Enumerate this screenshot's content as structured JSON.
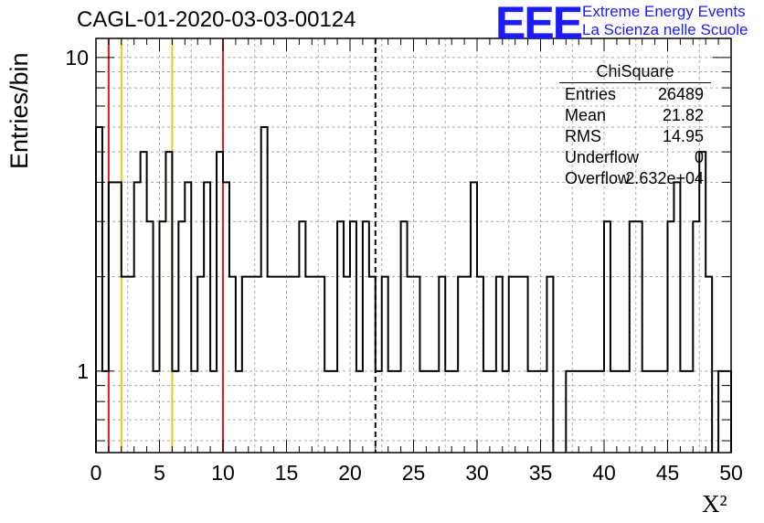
{
  "header": {
    "title": "CAGL-01-2020-03-03-00124",
    "logo_text": "EEE",
    "logo_line1": "Extreme Energy Events",
    "logo_line2": "La Scienza nelle Scuole",
    "logo_color": "#1a1aff"
  },
  "stats_box": {
    "title": "ChiSquare",
    "rows": [
      {
        "label": "Entries",
        "value": "26489"
      },
      {
        "label": "Mean",
        "value": "21.82"
      },
      {
        "label": "RMS",
        "value": "14.95"
      },
      {
        "label": "Underflow",
        "value": "0"
      },
      {
        "label": "Overflow",
        "value": "2.632e+04"
      }
    ]
  },
  "chart_data": {
    "type": "histogram",
    "xlabel": "X²",
    "ylabel": "Entries/bin",
    "xlim": [
      0,
      50
    ],
    "ylim": [
      0.55,
      11.5
    ],
    "y_scale": "log",
    "grid": true,
    "bin_width": 0.5,
    "x_ticks": [
      0,
      5,
      10,
      15,
      20,
      25,
      30,
      35,
      40,
      45,
      50
    ],
    "y_ticks": [
      1,
      10
    ],
    "values": [
      6,
      1,
      4,
      4,
      2,
      2,
      4,
      5,
      3,
      1,
      3,
      5,
      1,
      3,
      4,
      1,
      2,
      4,
      1,
      5,
      4,
      2,
      1,
      2,
      2,
      2,
      6,
      2,
      2,
      2,
      2,
      2,
      3,
      2,
      2,
      2,
      1,
      1,
      3,
      2,
      3,
      1,
      3,
      2,
      1,
      2,
      1,
      1,
      3,
      2,
      2,
      1,
      1,
      1,
      2,
      1,
      1,
      2,
      2,
      4,
      2,
      1,
      1,
      2,
      1,
      2,
      2,
      2,
      1,
      1,
      1,
      2,
      0,
      0,
      1,
      1,
      1,
      1,
      1,
      1,
      3,
      1,
      1,
      1,
      3,
      3,
      1,
      1,
      1,
      1,
      3,
      4,
      1,
      1,
      3,
      5,
      2,
      0,
      1,
      1
    ],
    "lines": [
      {
        "x": 1,
        "color": "#e41a1c",
        "style": "solid"
      },
      {
        "x": 10,
        "color": "#e41a1c",
        "style": "solid"
      },
      {
        "x": 2,
        "color": "#f0c419",
        "style": "solid"
      },
      {
        "x": 6,
        "color": "#f0c419",
        "style": "solid"
      },
      {
        "x": 22,
        "color": "#000000",
        "style": "dashed"
      }
    ]
  }
}
